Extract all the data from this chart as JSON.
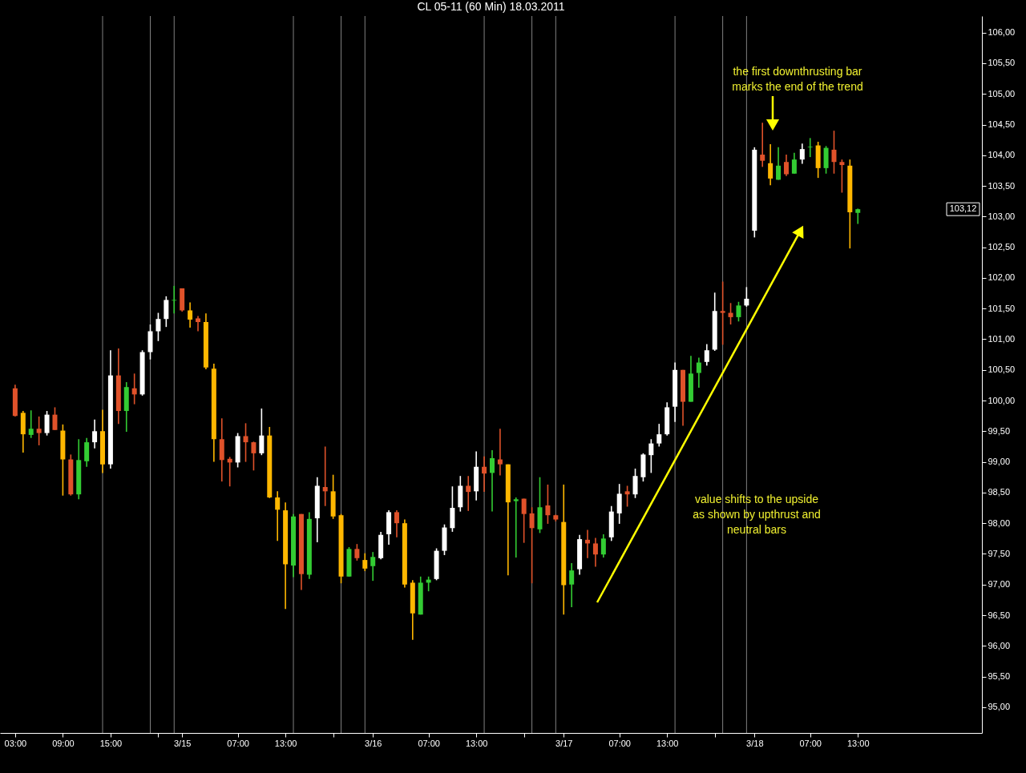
{
  "chart_data": {
    "type": "candlestick",
    "title": "CL 05-11 (60 Min)  18.03.2011",
    "x": [
      "2011-03-14T03:00",
      "2011-03-14T04:00",
      "2011-03-14T05:00",
      "2011-03-14T06:00",
      "2011-03-14T07:00",
      "2011-03-14T08:00",
      "2011-03-14T09:00",
      "2011-03-14T10:00",
      "2011-03-14T11:00",
      "2011-03-14T12:00",
      "2011-03-14T13:00",
      "2011-03-14T14:00",
      "2011-03-14T15:00",
      "2011-03-14T16:00",
      "2011-03-14T17:00",
      "2011-03-14T18:00",
      "2011-03-14T19:00",
      "2011-03-14T20:00",
      "2011-03-14T21:00",
      "2011-03-14T22:00",
      "2011-03-14T23:00",
      "2011-03-15T00:00",
      "2011-03-15T01:00",
      "2011-03-15T02:00",
      "2011-03-15T03:00",
      "2011-03-15T04:00",
      "2011-03-15T05:00",
      "2011-03-15T06:00",
      "2011-03-15T07:00",
      "2011-03-15T08:00",
      "2011-03-15T09:00",
      "2011-03-15T10:00",
      "2011-03-15T11:00",
      "2011-03-15T12:00",
      "2011-03-15T13:00",
      "2011-03-15T14:00",
      "2011-03-15T15:00",
      "2011-03-15T16:00",
      "2011-03-15T17:00",
      "2011-03-15T18:00",
      "2011-03-15T19:00",
      "2011-03-15T20:00",
      "2011-03-15T21:00",
      "2011-03-15T22:00",
      "2011-03-15T23:00",
      "2011-03-16T00:00",
      "2011-03-16T01:00",
      "2011-03-16T02:00",
      "2011-03-16T03:00",
      "2011-03-16T04:00",
      "2011-03-16T05:00",
      "2011-03-16T06:00",
      "2011-03-16T07:00",
      "2011-03-16T08:00",
      "2011-03-16T09:00",
      "2011-03-16T10:00",
      "2011-03-16T11:00",
      "2011-03-16T12:00",
      "2011-03-16T13:00",
      "2011-03-16T14:00",
      "2011-03-16T15:00",
      "2011-03-16T16:00",
      "2011-03-16T17:00",
      "2011-03-16T18:00",
      "2011-03-16T19:00",
      "2011-03-16T20:00",
      "2011-03-16T21:00",
      "2011-03-16T22:00",
      "2011-03-16T23:00",
      "2011-03-17T00:00",
      "2011-03-17T01:00",
      "2011-03-17T02:00",
      "2011-03-17T03:00",
      "2011-03-17T04:00",
      "2011-03-17T05:00",
      "2011-03-17T06:00",
      "2011-03-17T07:00",
      "2011-03-17T08:00",
      "2011-03-17T09:00",
      "2011-03-17T10:00",
      "2011-03-17T11:00",
      "2011-03-17T12:00",
      "2011-03-17T13:00",
      "2011-03-17T14:00",
      "2011-03-17T15:00",
      "2011-03-17T16:00",
      "2011-03-17T17:00",
      "2011-03-17T18:00",
      "2011-03-17T19:00",
      "2011-03-17T20:00",
      "2011-03-17T21:00",
      "2011-03-17T22:00",
      "2011-03-17T23:00",
      "2011-03-18T00:00",
      "2011-03-18T01:00",
      "2011-03-18T02:00",
      "2011-03-18T03:00",
      "2011-03-18T04:00",
      "2011-03-18T05:00",
      "2011-03-18T06:00",
      "2011-03-18T07:00",
      "2011-03-18T08:00",
      "2011-03-18T09:00",
      "2011-03-18T10:00",
      "2011-03-18T11:00",
      "2011-03-18T12:00",
      "2011-03-18T13:00"
    ],
    "ohlc": [
      [
        100.2,
        100.26,
        99.74,
        99.75
      ],
      [
        99.8,
        99.83,
        99.15,
        99.45
      ],
      [
        99.44,
        99.84,
        99.39,
        99.54
      ],
      [
        99.54,
        99.74,
        99.27,
        99.47
      ],
      [
        99.47,
        99.83,
        99.43,
        99.77
      ],
      [
        99.77,
        99.89,
        99.52,
        99.52
      ],
      [
        99.51,
        99.61,
        98.45,
        99.04
      ],
      [
        99.04,
        99.12,
        98.45,
        98.47
      ],
      [
        98.47,
        99.37,
        98.39,
        99.03
      ],
      [
        99.01,
        99.39,
        98.92,
        99.32
      ],
      [
        99.32,
        99.69,
        99.22,
        99.5
      ],
      [
        99.5,
        99.85,
        98.82,
        98.96
      ],
      [
        98.96,
        100.82,
        98.89,
        100.41
      ],
      [
        100.41,
        100.85,
        99.62,
        99.83
      ],
      [
        99.83,
        100.3,
        99.49,
        100.22
      ],
      [
        100.2,
        100.44,
        99.94,
        100.1
      ],
      [
        100.1,
        100.82,
        100.08,
        100.79
      ],
      [
        100.79,
        101.24,
        100.67,
        101.13
      ],
      [
        101.13,
        101.43,
        100.97,
        101.33
      ],
      [
        101.33,
        101.7,
        101.2,
        101.64
      ],
      [
        101.63,
        101.87,
        101.42,
        101.64
      ],
      [
        101.83,
        101.83,
        101.45,
        101.47
      ],
      [
        101.47,
        101.6,
        101.19,
        101.32
      ],
      [
        101.34,
        101.38,
        101.13,
        101.28
      ],
      [
        101.28,
        101.42,
        100.51,
        100.54
      ],
      [
        100.52,
        100.6,
        99.0,
        99.37
      ],
      [
        99.37,
        99.71,
        98.68,
        99.03
      ],
      [
        99.05,
        99.08,
        98.6,
        98.99
      ],
      [
        98.99,
        99.47,
        98.91,
        99.42
      ],
      [
        99.42,
        99.63,
        99.0,
        99.32
      ],
      [
        99.32,
        99.33,
        98.86,
        99.14
      ],
      [
        99.14,
        99.87,
        99.11,
        99.43
      ],
      [
        99.43,
        99.57,
        98.41,
        98.42
      ],
      [
        98.42,
        98.52,
        97.71,
        98.22
      ],
      [
        98.21,
        98.34,
        96.6,
        97.33
      ],
      [
        97.31,
        98.15,
        97.12,
        98.11
      ],
      [
        98.15,
        98.15,
        96.91,
        97.17
      ],
      [
        97.16,
        98.18,
        97.09,
        98.07
      ],
      [
        98.08,
        98.75,
        97.69,
        98.61
      ],
      [
        98.59,
        99.25,
        98.28,
        98.52
      ],
      [
        98.52,
        98.79,
        98.07,
        98.11
      ],
      [
        98.13,
        98.15,
        97.02,
        97.13
      ],
      [
        97.13,
        97.61,
        97.13,
        97.58
      ],
      [
        97.58,
        97.66,
        97.39,
        97.43
      ],
      [
        97.4,
        97.51,
        97.22,
        97.26
      ],
      [
        97.3,
        97.53,
        97.06,
        97.45
      ],
      [
        97.43,
        97.86,
        97.41,
        97.81
      ],
      [
        97.82,
        98.21,
        97.65,
        98.18
      ],
      [
        98.18,
        98.21,
        97.77,
        98.0
      ],
      [
        98.0,
        98.06,
        96.95,
        97.0
      ],
      [
        97.03,
        97.07,
        96.1,
        96.53
      ],
      [
        96.51,
        97.13,
        96.51,
        97.03
      ],
      [
        97.03,
        97.13,
        96.89,
        97.08
      ],
      [
        97.09,
        97.59,
        97.07,
        97.55
      ],
      [
        97.55,
        97.98,
        97.48,
        97.93
      ],
      [
        97.92,
        98.6,
        97.86,
        98.25
      ],
      [
        98.26,
        98.77,
        98.19,
        98.61
      ],
      [
        98.61,
        98.77,
        98.2,
        98.51
      ],
      [
        98.52,
        99.17,
        98.37,
        98.92
      ],
      [
        98.92,
        99.09,
        98.51,
        98.81
      ],
      [
        98.82,
        99.19,
        98.19,
        99.06
      ],
      [
        99.04,
        99.54,
        98.78,
        98.96
      ],
      [
        98.96,
        98.96,
        97.15,
        98.34
      ],
      [
        98.36,
        98.42,
        97.44,
        98.39
      ],
      [
        98.4,
        98.4,
        97.68,
        98.15
      ],
      [
        98.16,
        98.26,
        97.02,
        97.92
      ],
      [
        97.9,
        98.75,
        97.84,
        98.26
      ],
      [
        98.29,
        98.63,
        97.99,
        98.13
      ],
      [
        98.13,
        98.14,
        98.03,
        98.06
      ],
      [
        98.02,
        98.63,
        96.51,
        96.99
      ],
      [
        97.0,
        97.35,
        96.63,
        97.23
      ],
      [
        97.25,
        97.81,
        97.16,
        97.74
      ],
      [
        97.73,
        97.89,
        97.43,
        97.67
      ],
      [
        97.67,
        97.76,
        97.29,
        97.49
      ],
      [
        97.49,
        97.82,
        97.44,
        97.75
      ],
      [
        97.77,
        98.28,
        97.71,
        98.19
      ],
      [
        98.16,
        98.64,
        97.99,
        98.48
      ],
      [
        98.52,
        98.61,
        98.27,
        98.47
      ],
      [
        98.47,
        98.89,
        98.41,
        98.77
      ],
      [
        98.75,
        99.14,
        98.68,
        99.12
      ],
      [
        99.11,
        99.37,
        98.82,
        99.3
      ],
      [
        99.3,
        99.62,
        99.25,
        99.45
      ],
      [
        99.45,
        99.97,
        99.43,
        99.89
      ],
      [
        99.9,
        100.62,
        99.65,
        100.5
      ],
      [
        100.5,
        100.5,
        99.59,
        99.98
      ],
      [
        99.98,
        100.73,
        99.98,
        100.44
      ],
      [
        100.45,
        100.7,
        100.21,
        100.62
      ],
      [
        100.63,
        100.92,
        100.57,
        100.82
      ],
      [
        100.83,
        101.76,
        100.81,
        101.46
      ],
      [
        101.46,
        101.94,
        100.91,
        101.43
      ],
      [
        101.43,
        101.59,
        101.24,
        101.36
      ],
      [
        101.36,
        101.61,
        101.29,
        101.55
      ],
      [
        101.55,
        101.85,
        101.53,
        101.66
      ],
      [
        102.77,
        104.13,
        102.66,
        104.09
      ],
      [
        104.01,
        104.53,
        103.81,
        103.91
      ],
      [
        103.87,
        104.18,
        103.51,
        103.62
      ],
      [
        103.6,
        104.13,
        103.6,
        103.83
      ],
      [
        103.89,
        104.01,
        103.66,
        103.69
      ],
      [
        103.7,
        104.04,
        103.7,
        103.93
      ],
      [
        103.93,
        104.19,
        103.86,
        104.1
      ],
      [
        104.13,
        104.28,
        103.97,
        104.14
      ],
      [
        104.16,
        104.22,
        103.63,
        103.79
      ],
      [
        103.79,
        104.15,
        103.7,
        104.12
      ],
      [
        104.09,
        104.4,
        103.7,
        103.89
      ],
      [
        103.89,
        103.93,
        103.39,
        103.84
      ],
      [
        103.83,
        103.93,
        102.48,
        103.07
      ],
      [
        103.06,
        103.13,
        102.88,
        103.12
      ]
    ],
    "colors": [
      "#e0522a",
      "#ffb700",
      "#33cc33",
      "#e0522a",
      "#ffffff",
      "#e0522a",
      "#ffb700",
      "#e0522a",
      "#33cc33",
      "#33cc33",
      "#ffffff",
      "#ffb700",
      "#ffffff",
      "#e0522a",
      "#33cc33",
      "#e0522a",
      "#ffffff",
      "#ffffff",
      "#ffffff",
      "#ffffff",
      "#33cc33",
      "#e0522a",
      "#ffb700",
      "#e0522a",
      "#ffb700",
      "#ffb700",
      "#e0522a",
      "#e0522a",
      "#ffffff",
      "#e0522a",
      "#e0522a",
      "#ffffff",
      "#ffb700",
      "#ffb700",
      "#ffb700",
      "#33cc33",
      "#e0522a",
      "#33cc33",
      "#ffffff",
      "#e0522a",
      "#ffb700",
      "#ffb700",
      "#33cc33",
      "#e0522a",
      "#ffb700",
      "#33cc33",
      "#ffffff",
      "#ffffff",
      "#e0522a",
      "#ffb700",
      "#ffb700",
      "#33cc33",
      "#33cc33",
      "#ffffff",
      "#ffffff",
      "#ffffff",
      "#ffffff",
      "#e0522a",
      "#ffffff",
      "#e0522a",
      "#33cc33",
      "#e0522a",
      "#ffb700",
      "#33cc33",
      "#e0522a",
      "#e0522a",
      "#33cc33",
      "#e0522a",
      "#e0522a",
      "#ffb700",
      "#33cc33",
      "#ffffff",
      "#e0522a",
      "#e0522a",
      "#33cc33",
      "#ffffff",
      "#ffffff",
      "#e0522a",
      "#ffffff",
      "#ffffff",
      "#ffffff",
      "#ffffff",
      "#ffffff",
      "#ffffff",
      "#e0522a",
      "#33cc33",
      "#33cc33",
      "#ffffff",
      "#ffffff",
      "#e0522a",
      "#e0522a",
      "#33cc33",
      "#ffffff",
      "#ffffff",
      "#e0522a",
      "#ffb700",
      "#33cc33",
      "#e0522a",
      "#33cc33",
      "#ffffff",
      "#33cc33",
      "#ffb700",
      "#33cc33",
      "#e0522a",
      "#e0522a",
      "#ffb700",
      "#33cc33"
    ],
    "xlim": [
      "2011-03-14T01:36",
      "2011-03-19T04:06"
    ],
    "ylim": [
      94.58,
      106.27
    ],
    "xticks": [
      {
        "value": "2011-03-14T03:00",
        "label": "03:00"
      },
      {
        "value": "2011-03-14T09:00",
        "label": "09:00"
      },
      {
        "value": "2011-03-14T15:00",
        "label": "15:00"
      },
      {
        "value": "2011-03-14T21:00",
        "label": null
      },
      {
        "value": "2011-03-15T00:00",
        "label": "3/15"
      },
      {
        "value": "2011-03-15T07:00",
        "label": "07:00"
      },
      {
        "value": "2011-03-15T13:00",
        "label": "13:00"
      },
      {
        "value": "2011-03-15T19:00",
        "label": null
      },
      {
        "value": "2011-03-16T00:00",
        "label": "3/16"
      },
      {
        "value": "2011-03-16T07:00",
        "label": "07:00"
      },
      {
        "value": "2011-03-16T13:00",
        "label": "13:00"
      },
      {
        "value": "2011-03-16T19:00",
        "label": null
      },
      {
        "value": "2011-03-17T00:00",
        "label": "3/17"
      },
      {
        "value": "2011-03-17T07:00",
        "label": "07:00"
      },
      {
        "value": "2011-03-17T13:00",
        "label": "13:00"
      },
      {
        "value": "2011-03-17T19:00",
        "label": null
      },
      {
        "value": "2011-03-18T00:00",
        "label": "3/18"
      },
      {
        "value": "2011-03-18T07:00",
        "label": "07:00"
      },
      {
        "value": "2011-03-18T13:00",
        "label": "13:00"
      }
    ],
    "yticks": [
      {
        "value": 95,
        "label": "95,00"
      },
      {
        "value": 95.5,
        "label": "95,50"
      },
      {
        "value": 96,
        "label": "96,00"
      },
      {
        "value": 96.5,
        "label": "96,50"
      },
      {
        "value": 97,
        "label": "97,00"
      },
      {
        "value": 97.5,
        "label": "97,50"
      },
      {
        "value": 98,
        "label": "98,00"
      },
      {
        "value": 98.5,
        "label": "98,50"
      },
      {
        "value": 99,
        "label": "99,00"
      },
      {
        "value": 99.5,
        "label": "99,50"
      },
      {
        "value": 100,
        "label": "100,00"
      },
      {
        "value": 100.5,
        "label": "100,50"
      },
      {
        "value": 101,
        "label": "101,00"
      },
      {
        "value": 101.5,
        "label": "101,50"
      },
      {
        "value": 102,
        "label": "102,00"
      },
      {
        "value": 102.5,
        "label": "102,50"
      },
      {
        "value": 103,
        "label": "103,00"
      },
      {
        "value": 103.5,
        "label": "103,50"
      },
      {
        "value": 104,
        "label": "104,00"
      },
      {
        "value": 104.5,
        "label": "104,50"
      },
      {
        "value": 105,
        "label": "105,00"
      },
      {
        "value": 105.5,
        "label": "105,50"
      },
      {
        "value": 106,
        "label": "106,00"
      }
    ],
    "ref_lines": [
      {
        "axis": "x",
        "value": "2011-03-14T14:00",
        "color": "#808080"
      },
      {
        "axis": "x",
        "value": "2011-03-14T20:00",
        "color": "#808080"
      },
      {
        "axis": "x",
        "value": "2011-03-14T23:00",
        "color": "#808080"
      },
      {
        "axis": "x",
        "value": "2011-03-15T14:00",
        "color": "#808080"
      },
      {
        "axis": "x",
        "value": "2011-03-15T20:00",
        "color": "#808080"
      },
      {
        "axis": "x",
        "value": "2011-03-15T23:00",
        "color": "#808080"
      },
      {
        "axis": "x",
        "value": "2011-03-16T14:00",
        "color": "#808080"
      },
      {
        "axis": "x",
        "value": "2011-03-16T20:00",
        "color": "#808080"
      },
      {
        "axis": "x",
        "value": "2011-03-16T23:00",
        "color": "#808080"
      },
      {
        "axis": "x",
        "value": "2011-03-17T14:00",
        "color": "#808080"
      },
      {
        "axis": "x",
        "value": "2011-03-17T20:00",
        "color": "#808080"
      },
      {
        "axis": "x",
        "value": "2011-03-17T23:00",
        "color": "#808080"
      }
    ],
    "annotations": [
      "the first downthrusting bar\nmarks the end of the trend",
      "value shifts to the upside\nas shown by upthrust and\nneutral bars",
      "103,12"
    ],
    "grid": false
  }
}
